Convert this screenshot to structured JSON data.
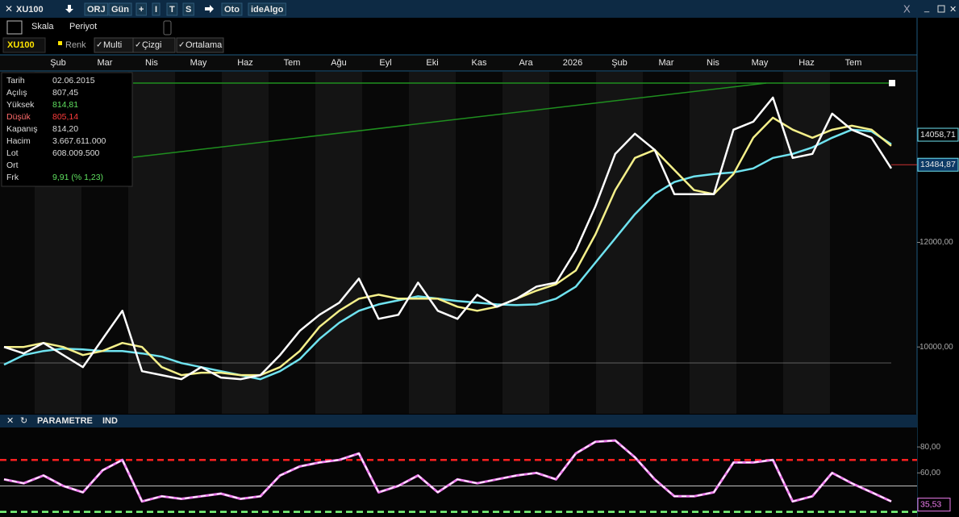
{
  "toolbar": {
    "symbol": "XU100",
    "buttons": [
      "ORJ",
      "Gün",
      "+",
      "I",
      "T",
      "S",
      "Oto",
      "ideAlgo"
    ]
  },
  "toolbar2": {
    "items": [
      "Skala",
      "Periyot"
    ]
  },
  "toolbar3": {
    "symbol": "XU100",
    "items": [
      "Renk",
      "Multi",
      "Çizgi",
      "Ortalama"
    ]
  },
  "info": {
    "rows": [
      {
        "label": "Tarih",
        "value": "02.06.2015"
      },
      {
        "label": "Açılış",
        "value": "807,45"
      },
      {
        "label": "Yüksek",
        "value": "814,81",
        "color": "#5fe05f"
      },
      {
        "label": "Düşük",
        "value": "805,14",
        "color": "#ff3b3b",
        "label_color": "#ff6b6b"
      },
      {
        "label": "Kapanış",
        "value": "814,20"
      },
      {
        "label": "Hacim",
        "value": "3.667.611.000"
      },
      {
        "label": "Lot",
        "value": "608.009.500"
      },
      {
        "label": "Ort",
        "value": ""
      },
      {
        "label": "Frk",
        "value": "9,91 (% 1,23)",
        "color": "#5fe05f"
      }
    ]
  },
  "price_chart": {
    "months": [
      "Şub",
      "Mar",
      "Nis",
      "May",
      "Haz",
      "Tem",
      "Ağu",
      "Eyl",
      "Eki",
      "Kas",
      "Ara",
      "2026",
      "Şub",
      "Mar",
      "Nis",
      "May",
      "Haz",
      "Tem"
    ],
    "ylim": [
      8723,
      15262
    ],
    "yticks": [
      {
        "value": 10000,
        "label": "10000,00"
      },
      {
        "value": 12000,
        "label": "12000,00"
      }
    ],
    "series": [
      {
        "color": "#6fe3f0",
        "values": [
          9662,
          9846,
          9923,
          9969,
          9954,
          9923,
          9923,
          9877,
          9815,
          9692,
          9615,
          9538,
          9462,
          9385,
          9538,
          9769,
          10154,
          10462,
          10692,
          10815,
          10892,
          10969,
          10923,
          10877,
          10846,
          10815,
          10800,
          10815,
          10923,
          11154,
          11615,
          12077,
          12538,
          12923,
          13154,
          13262,
          13308,
          13338,
          13415,
          13615,
          13692,
          13815,
          14000,
          14154,
          14123,
          13877
        ]
      },
      {
        "color": "#f5f08a",
        "values": [
          10000,
          10000,
          10077,
          10000,
          9846,
          9923,
          10077,
          10000,
          9615,
          9462,
          9508,
          9508,
          9462,
          9462,
          9615,
          9923,
          10385,
          10692,
          10923,
          11000,
          10923,
          10923,
          10923,
          10769,
          10692,
          10769,
          10923,
          11077,
          11200,
          11462,
          12154,
          13000,
          13615,
          13769,
          13385,
          13000,
          12923,
          13308,
          14000,
          14385,
          14154,
          14000,
          14154,
          14231,
          14154,
          13846
        ]
      },
      {
        "color": "#ffffff",
        "values": [
          10000,
          9877,
          10077,
          9846,
          9615,
          10154,
          10692,
          9538,
          9462,
          9385,
          9615,
          9415,
          9385,
          9462,
          9846,
          10308,
          10615,
          10846,
          11308,
          10538,
          10615,
          11231,
          10692,
          10538,
          11000,
          10769,
          10923,
          11154,
          11231,
          11846,
          12692,
          13692,
          14077,
          13769,
          12923,
          12923,
          12923,
          14154,
          14308,
          14769,
          13615,
          13692,
          14462,
          14154,
          14000,
          13415
        ]
      }
    ],
    "last_labels": [
      {
        "value": 14058.71,
        "label": "14058,71"
      },
      {
        "value": 13484.87,
        "label": "13484,87"
      }
    ]
  },
  "indicator": {
    "header": [
      "PARAMETRE",
      "IND"
    ],
    "ylim": [
      26,
      95
    ],
    "yticks": [
      {
        "value": 80,
        "label": "80,00"
      },
      {
        "value": 60,
        "label": "60,00"
      }
    ],
    "levels": [
      {
        "value": 70,
        "color": "#ff2020"
      },
      {
        "value": 50,
        "color": "#ffffff"
      },
      {
        "value": 30,
        "color": "#7dff7d"
      }
    ],
    "color": "#f07ef0",
    "values": [
      55,
      52,
      58,
      50,
      45,
      62,
      70,
      38,
      42,
      40,
      42,
      44,
      40,
      42,
      58,
      65,
      68,
      70,
      75,
      45,
      50,
      58,
      45,
      55,
      52,
      55,
      58,
      60,
      55,
      75,
      84,
      85,
      72,
      55,
      42,
      42,
      45,
      68,
      68,
      70,
      38,
      42,
      60,
      52,
      45,
      38
    ],
    "last_label": {
      "value": 35.53,
      "label": "35,53"
    }
  }
}
